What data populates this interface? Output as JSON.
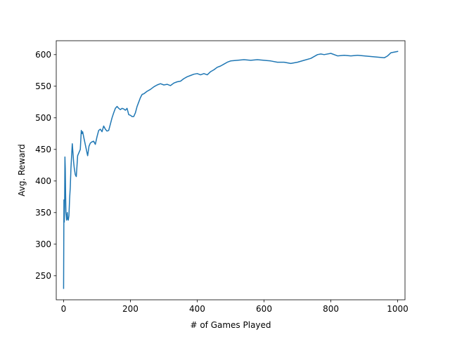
{
  "chart_data": {
    "type": "line",
    "title": "",
    "xlabel": "# of Games Played",
    "ylabel": "Avg. Reward",
    "xlim": [
      -22,
      1022
    ],
    "ylim": [
      212,
      622
    ],
    "xticks": [
      0,
      200,
      400,
      600,
      800,
      1000
    ],
    "yticks": [
      250,
      300,
      350,
      400,
      450,
      500,
      550,
      600
    ],
    "xtick_labels": [
      "0",
      "200",
      "400",
      "600",
      "800",
      "1000"
    ],
    "ytick_labels": [
      "250",
      "300",
      "350",
      "400",
      "450",
      "500",
      "550",
      "600"
    ],
    "grid": false,
    "legend": "none",
    "series": [
      {
        "color": "#1f77b4",
        "x": [
          0,
          1,
          2,
          3,
          4,
          5,
          6,
          7,
          8,
          9,
          10,
          11,
          12,
          14,
          16,
          18,
          20,
          22,
          24,
          26,
          28,
          30,
          32,
          35,
          38,
          42,
          46,
          50,
          53,
          55,
          57,
          60,
          64,
          68,
          72,
          76,
          80,
          85,
          90,
          95,
          100,
          105,
          110,
          115,
          120,
          125,
          130,
          135,
          140,
          145,
          150,
          155,
          160,
          165,
          170,
          175,
          180,
          185,
          190,
          195,
          200,
          205,
          210,
          215,
          220,
          225,
          230,
          235,
          240,
          250,
          260,
          270,
          280,
          290,
          300,
          310,
          320,
          330,
          340,
          350,
          360,
          370,
          380,
          390,
          400,
          410,
          420,
          430,
          440,
          450,
          460,
          470,
          480,
          490,
          500,
          520,
          540,
          560,
          580,
          600,
          620,
          640,
          660,
          680,
          700,
          720,
          740,
          760,
          770,
          780,
          800,
          820,
          840,
          860,
          880,
          900,
          920,
          940,
          960,
          970,
          980,
          1000
        ],
        "y": [
          230,
          370,
          335,
          360,
          438,
          420,
          380,
          350,
          345,
          338,
          340,
          350,
          342,
          338,
          345,
          372,
          390,
          420,
          440,
          459,
          445,
          430,
          420,
          410,
          407,
          440,
          445,
          450,
          480,
          475,
          478,
          470,
          460,
          450,
          440,
          455,
          460,
          462,
          463,
          458,
          470,
          480,
          482,
          478,
          487,
          482,
          479,
          480,
          490,
          500,
          508,
          515,
          518,
          515,
          513,
          515,
          514,
          512,
          515,
          505,
          504,
          502,
          502,
          508,
          518,
          525,
          532,
          537,
          538,
          542,
          545,
          549,
          552,
          554,
          552,
          553,
          551,
          555,
          557,
          558,
          562,
          565,
          567,
          569,
          570,
          568,
          570,
          568,
          573,
          576,
          580,
          582,
          585,
          588,
          590,
          591,
          592,
          591,
          592,
          591,
          590,
          588,
          588,
          586,
          588,
          591,
          594,
          600,
          601,
          600,
          602,
          598,
          599,
          598,
          599,
          598,
          597,
          596,
          595,
          598,
          603,
          605
        ]
      }
    ]
  }
}
